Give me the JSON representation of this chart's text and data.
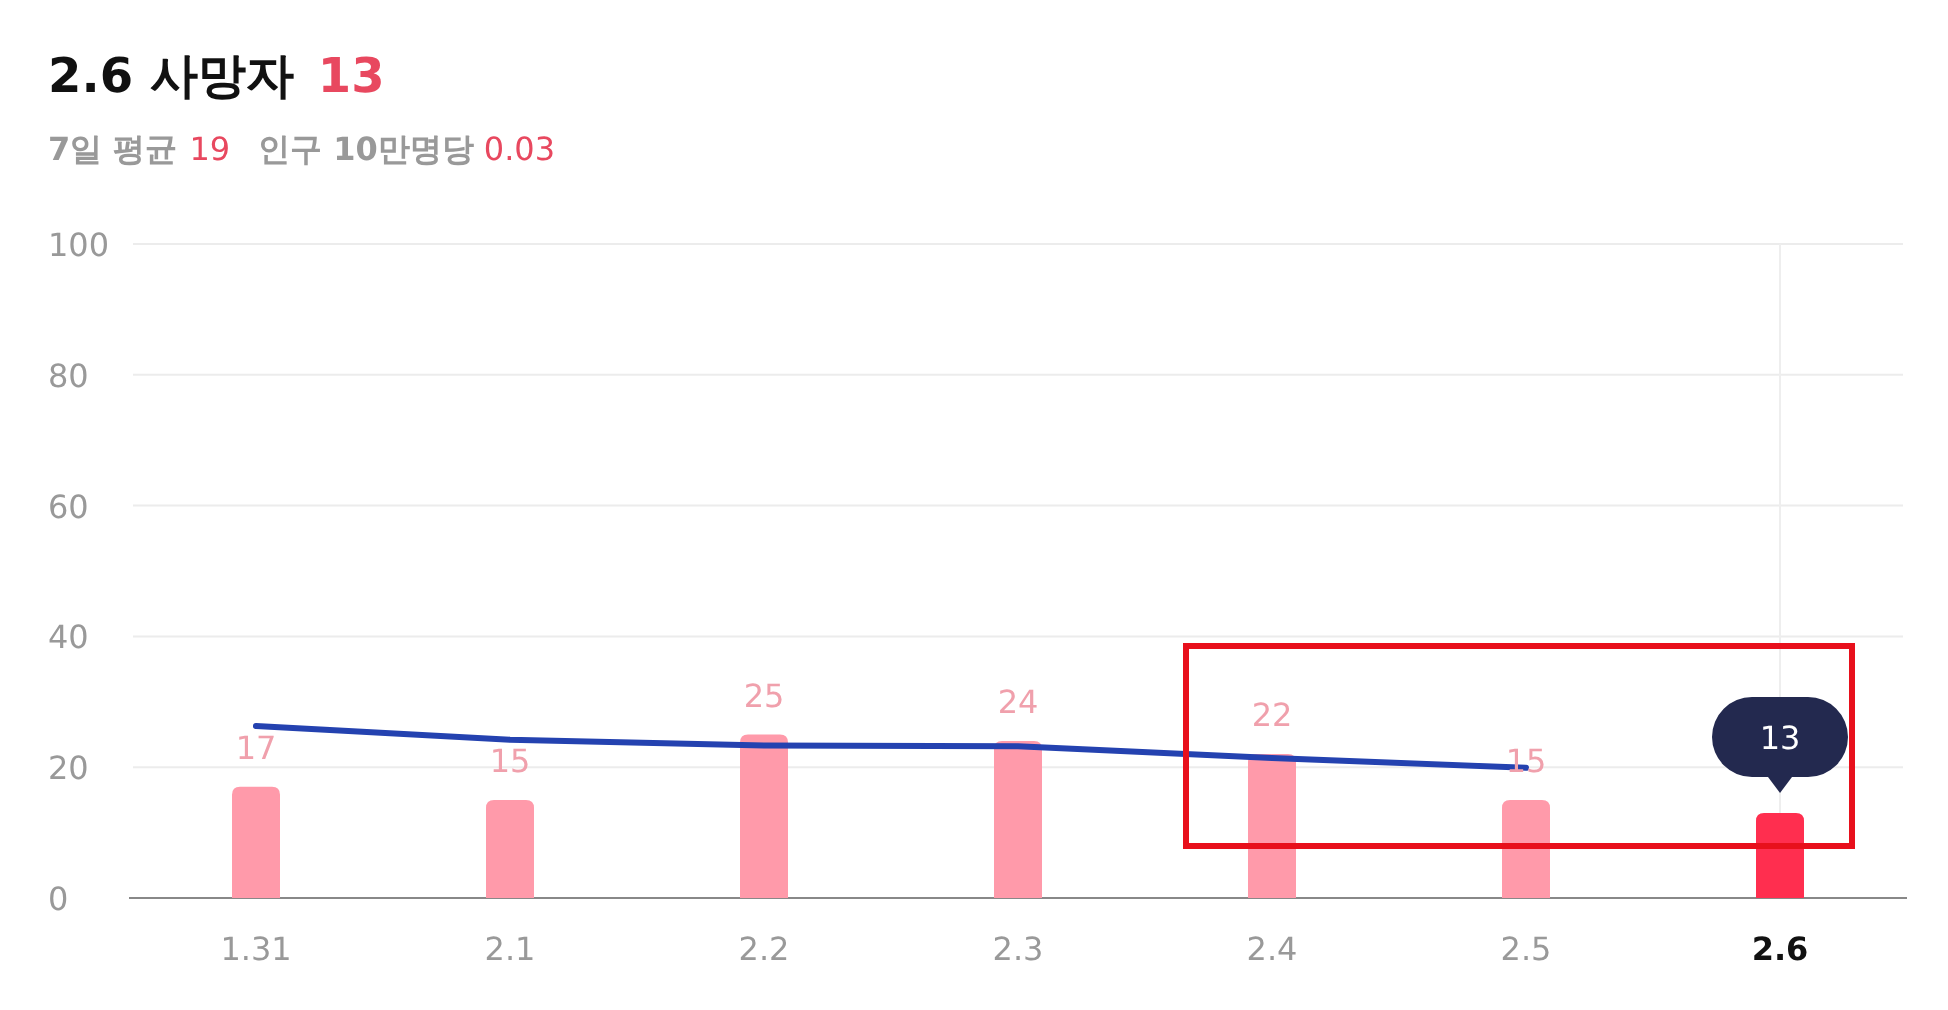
{
  "chart_data": {
    "type": "bar",
    "title": "2.6 사망자",
    "subtitle": "7일 평균",
    "annotations": [
      "13",
      "19",
      "인구 10만명당",
      "0.03"
    ],
    "categories": [
      "1.31",
      "2.1",
      "2.2",
      "2.3",
      "2.4",
      "2.5",
      "2.6"
    ],
    "series": [
      {
        "values": [
          17,
          15,
          25,
          24,
          22,
          15,
          13
        ],
        "value_labels": [
          "17",
          "15",
          "25",
          "24",
          "22",
          "15",
          "13"
        ],
        "colors": [
          "#ff9aaa",
          "#ff9aaa",
          "#ff9aaa",
          "#ff9aaa",
          "#ff9aaa",
          "#ff9aaa",
          "#ff2e4f"
        ]
      },
      {
        "type": "line",
        "color": "#2442b0",
        "values": [
          26.3,
          24.2,
          23.3,
          23.2,
          21.4,
          19.9,
          null
        ]
      }
    ],
    "ylim": [
      0,
      100
    ],
    "yticks": [
      0,
      20,
      40,
      60,
      80,
      100
    ],
    "grid": "y",
    "ref_lines": [
      {
        "axis": "x",
        "value": "2.6",
        "color": "#eeeeee"
      }
    ]
  }
}
